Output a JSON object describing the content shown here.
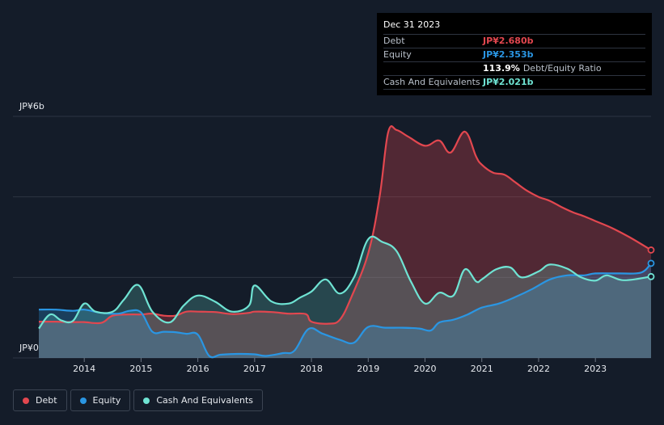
{
  "tooltip": {
    "date": "Dec 31 2023",
    "debt_label": "Debt",
    "debt_value": "JP¥2.680b",
    "equity_label": "Equity",
    "equity_value": "JP¥2.353b",
    "ratio_value": "113.9%",
    "ratio_label": "Debt/Equity Ratio",
    "cash_label": "Cash And Equivalents",
    "cash_value": "JP¥2.021b"
  },
  "legend": {
    "debt": "Debt",
    "equity": "Equity",
    "cash": "Cash And Equivalents"
  },
  "colors": {
    "debt": "#e2474f",
    "equity": "#2a96e3",
    "cash": "#6fe3d3",
    "background": "#141c29"
  },
  "chart_data": {
    "type": "area",
    "title": "",
    "xlabel": "",
    "ylabel": "",
    "y_unit": "JP¥b",
    "ylim": [
      0,
      6
    ],
    "xlim": [
      2013.2,
      2023.98
    ],
    "y_tick_labels": [
      "JP¥0",
      "JP¥6b"
    ],
    "x_ticks": [
      2014,
      2015,
      2016,
      2017,
      2018,
      2019,
      2020,
      2021,
      2022,
      2023
    ],
    "series": [
      {
        "name": "Debt",
        "key": "debt",
        "points": [
          [
            2013.2,
            0.9
          ],
          [
            2013.5,
            0.9
          ],
          [
            2013.8,
            0.89
          ],
          [
            2014.0,
            0.89
          ],
          [
            2014.3,
            0.87
          ],
          [
            2014.5,
            1.05
          ],
          [
            2014.8,
            1.08
          ],
          [
            2015.0,
            1.08
          ],
          [
            2015.2,
            1.1
          ],
          [
            2015.4,
            1.05
          ],
          [
            2015.6,
            1.05
          ],
          [
            2015.8,
            1.15
          ],
          [
            2016.0,
            1.15
          ],
          [
            2016.3,
            1.14
          ],
          [
            2016.6,
            1.09
          ],
          [
            2016.9,
            1.12
          ],
          [
            2017.0,
            1.15
          ],
          [
            2017.3,
            1.14
          ],
          [
            2017.6,
            1.1
          ],
          [
            2017.9,
            1.09
          ],
          [
            2018.0,
            0.9
          ],
          [
            2018.3,
            0.85
          ],
          [
            2018.5,
            0.95
          ],
          [
            2018.7,
            1.5
          ],
          [
            2019.0,
            2.6
          ],
          [
            2019.2,
            4.0
          ],
          [
            2019.35,
            5.6
          ],
          [
            2019.5,
            5.66
          ],
          [
            2019.7,
            5.5
          ],
          [
            2020.0,
            5.27
          ],
          [
            2020.25,
            5.4
          ],
          [
            2020.45,
            5.1
          ],
          [
            2020.7,
            5.62
          ],
          [
            2020.9,
            5.0
          ],
          [
            2021.0,
            4.8
          ],
          [
            2021.2,
            4.6
          ],
          [
            2021.4,
            4.55
          ],
          [
            2021.6,
            4.35
          ],
          [
            2021.8,
            4.15
          ],
          [
            2022.0,
            4.0
          ],
          [
            2022.2,
            3.9
          ],
          [
            2022.4,
            3.75
          ],
          [
            2022.6,
            3.62
          ],
          [
            2022.8,
            3.52
          ],
          [
            2023.0,
            3.4
          ],
          [
            2023.3,
            3.22
          ],
          [
            2023.6,
            3.0
          ],
          [
            2023.98,
            2.68
          ]
        ]
      },
      {
        "name": "Equity",
        "key": "equity",
        "points": [
          [
            2013.2,
            1.2
          ],
          [
            2013.5,
            1.2
          ],
          [
            2013.8,
            1.17
          ],
          [
            2014.0,
            1.2
          ],
          [
            2014.3,
            1.12
          ],
          [
            2014.6,
            1.1
          ],
          [
            2014.8,
            1.17
          ],
          [
            2015.0,
            1.13
          ],
          [
            2015.2,
            0.65
          ],
          [
            2015.4,
            0.65
          ],
          [
            2015.6,
            0.64
          ],
          [
            2015.8,
            0.6
          ],
          [
            2016.0,
            0.58
          ],
          [
            2016.2,
            0.05
          ],
          [
            2016.4,
            0.08
          ],
          [
            2016.7,
            0.1
          ],
          [
            2017.0,
            0.09
          ],
          [
            2017.2,
            0.05
          ],
          [
            2017.5,
            0.12
          ],
          [
            2017.7,
            0.18
          ],
          [
            2017.95,
            0.72
          ],
          [
            2018.2,
            0.6
          ],
          [
            2018.5,
            0.45
          ],
          [
            2018.75,
            0.38
          ],
          [
            2019.0,
            0.77
          ],
          [
            2019.3,
            0.75
          ],
          [
            2019.6,
            0.75
          ],
          [
            2019.9,
            0.73
          ],
          [
            2020.1,
            0.68
          ],
          [
            2020.25,
            0.88
          ],
          [
            2020.5,
            0.95
          ],
          [
            2020.75,
            1.08
          ],
          [
            2021.0,
            1.25
          ],
          [
            2021.3,
            1.35
          ],
          [
            2021.6,
            1.52
          ],
          [
            2021.9,
            1.72
          ],
          [
            2022.2,
            1.95
          ],
          [
            2022.5,
            2.05
          ],
          [
            2022.8,
            2.05
          ],
          [
            2023.0,
            2.1
          ],
          [
            2023.4,
            2.1
          ],
          [
            2023.8,
            2.12
          ],
          [
            2023.98,
            2.35
          ]
        ]
      },
      {
        "name": "Cash And Equivalents",
        "key": "cash",
        "points": [
          [
            2013.2,
            0.73
          ],
          [
            2013.4,
            1.08
          ],
          [
            2013.6,
            0.93
          ],
          [
            2013.8,
            0.92
          ],
          [
            2014.0,
            1.35
          ],
          [
            2014.2,
            1.15
          ],
          [
            2014.5,
            1.15
          ],
          [
            2014.7,
            1.45
          ],
          [
            2014.95,
            1.81
          ],
          [
            2015.2,
            1.15
          ],
          [
            2015.5,
            0.88
          ],
          [
            2015.75,
            1.3
          ],
          [
            2016.0,
            1.55
          ],
          [
            2016.3,
            1.4
          ],
          [
            2016.6,
            1.15
          ],
          [
            2016.9,
            1.3
          ],
          [
            2017.0,
            1.8
          ],
          [
            2017.3,
            1.4
          ],
          [
            2017.6,
            1.35
          ],
          [
            2017.8,
            1.5
          ],
          [
            2018.0,
            1.65
          ],
          [
            2018.25,
            1.95
          ],
          [
            2018.5,
            1.6
          ],
          [
            2018.75,
            2.0
          ],
          [
            2019.0,
            2.95
          ],
          [
            2019.25,
            2.88
          ],
          [
            2019.5,
            2.65
          ],
          [
            2019.75,
            1.9
          ],
          [
            2020.0,
            1.35
          ],
          [
            2020.25,
            1.62
          ],
          [
            2020.5,
            1.55
          ],
          [
            2020.7,
            2.2
          ],
          [
            2020.9,
            1.9
          ],
          [
            2021.0,
            1.95
          ],
          [
            2021.25,
            2.2
          ],
          [
            2021.5,
            2.25
          ],
          [
            2021.7,
            2.0
          ],
          [
            2022.0,
            2.15
          ],
          [
            2022.2,
            2.32
          ],
          [
            2022.5,
            2.22
          ],
          [
            2022.75,
            2.0
          ],
          [
            2023.0,
            1.92
          ],
          [
            2023.2,
            2.05
          ],
          [
            2023.5,
            1.93
          ],
          [
            2023.98,
            2.02
          ]
        ]
      }
    ]
  }
}
